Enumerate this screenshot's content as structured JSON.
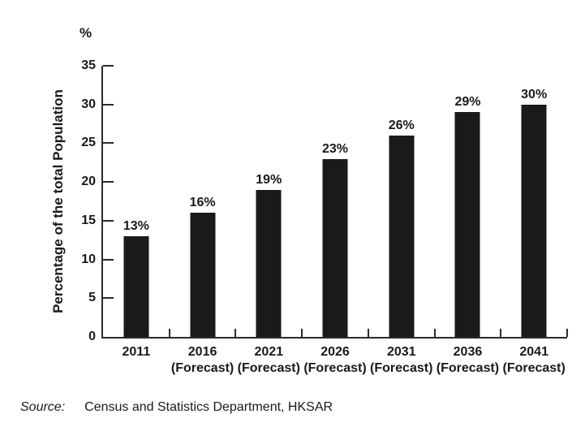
{
  "chart_data": {
    "type": "bar",
    "title": "",
    "unit": "%",
    "ylabel": "Percentage of the total Population",
    "ylim": [
      0,
      35
    ],
    "yticks": [
      0,
      5,
      10,
      15,
      20,
      25,
      30,
      35
    ],
    "categories": [
      {
        "year": "2011",
        "note": ""
      },
      {
        "year": "2016",
        "note": "(Forecast)"
      },
      {
        "year": "2021",
        "note": "(Forecast)"
      },
      {
        "year": "2026",
        "note": "(Forecast)"
      },
      {
        "year": "2031",
        "note": "(Forecast)"
      },
      {
        "year": "2036",
        "note": "(Forecast)"
      },
      {
        "year": "2041",
        "note": "(Forecast)"
      }
    ],
    "values": [
      13,
      16,
      19,
      23,
      26,
      29,
      30
    ],
    "data_labels": [
      "13%",
      "16%",
      "19%",
      "23%",
      "26%",
      "29%",
      "30%"
    ],
    "bar_color": "#1a1a1a",
    "axis_color": "#2b2b2b",
    "legend": "none",
    "grid": "off"
  },
  "source": {
    "label": "Source:",
    "text": "Census and Statistics Department, HKSAR"
  }
}
